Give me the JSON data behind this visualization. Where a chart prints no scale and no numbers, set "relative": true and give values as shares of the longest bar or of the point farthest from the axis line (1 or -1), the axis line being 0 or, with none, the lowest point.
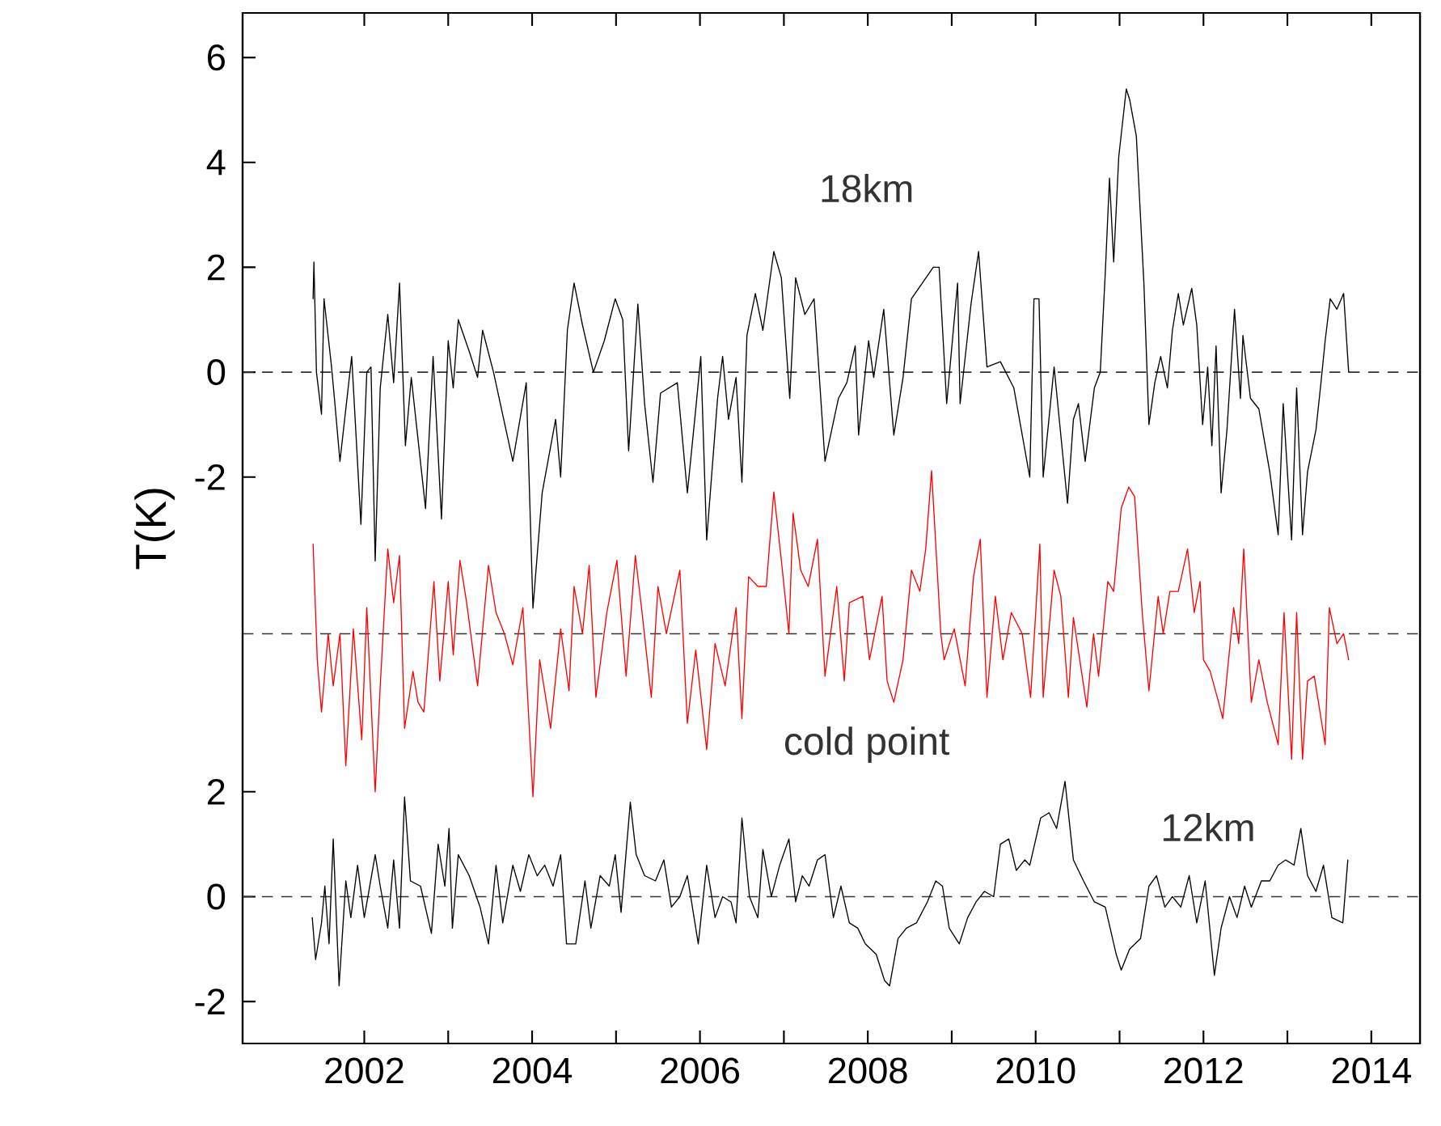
{
  "chart_data": [
    {
      "type": "line",
      "ylabel": "T(K)",
      "xlim": [
        2000.55,
        2014.58
      ],
      "ylim": [
        -12.8,
        6.85
      ],
      "yticks": [
        6,
        4,
        2,
        0,
        -2
      ],
      "tick_labels": "y",
      "ref_lines": [
        {
          "axis": "y",
          "value": 0,
          "line_style": "dashed"
        }
      ],
      "series": [
        {
          "name": "18km",
          "color": "#000000",
          "x": [
            2001.39,
            2001.4,
            2001.43,
            2001.49,
            2001.52,
            2001.61,
            2001.65,
            2001.71,
            2001.78,
            2001.85,
            2001.96,
            2002.03,
            2002.08,
            2002.13,
            2002.19,
            2002.28,
            2002.35,
            2002.42,
            2002.49,
            2002.56,
            2002.73,
            2002.82,
            2002.92,
            2003.0,
            2003.06,
            2003.12,
            2003.25,
            2003.35,
            2003.41,
            2003.54,
            2003.77,
            2003.93,
            2004.01,
            2004.12,
            2004.28,
            2004.34,
            2004.42,
            2004.5,
            2004.6,
            2004.73,
            2004.86,
            2004.99,
            2005.08,
            2005.15,
            2005.26,
            2005.34,
            2005.44,
            2005.53,
            2005.73,
            2005.85,
            2005.95,
            2006.01,
            2006.08,
            2006.21,
            2006.27,
            2006.34,
            2006.43,
            2006.5,
            2006.56,
            2006.66,
            2006.75,
            2006.88,
            2006.97,
            2007.07,
            2007.14,
            2007.25,
            2007.36,
            2007.49,
            2007.65,
            2007.75,
            2007.85,
            2007.89,
            2008.01,
            2008.07,
            2008.19,
            2008.31,
            2008.42,
            2008.52,
            2008.65,
            2008.78,
            2008.85,
            2008.94,
            2009.07,
            2009.1,
            2009.23,
            2009.32,
            2009.42,
            2009.58,
            2009.74,
            2009.93,
            2009.98,
            2010.04,
            2010.09,
            2010.22,
            2010.38,
            2010.45,
            2010.51,
            2010.59,
            2010.7,
            2010.77,
            2010.83,
            2010.88,
            2010.93,
            2010.99,
            2011.08,
            2011.12,
            2011.2,
            2011.29,
            2011.35,
            2011.42,
            2011.49,
            2011.57,
            2011.63,
            2011.7,
            2011.76,
            2011.86,
            2011.92,
            2011.99,
            2012.05,
            2012.1,
            2012.15,
            2012.21,
            2012.28,
            2012.37,
            2012.44,
            2012.47,
            2012.56,
            2012.66,
            2012.79,
            2012.89,
            2012.95,
            2013.05,
            2013.11,
            2013.18,
            2013.24,
            2013.34,
            2013.4,
            2013.45,
            2013.51,
            2013.59,
            2013.67,
            2013.73
          ],
          "values": [
            1.4,
            2.1,
            0.0,
            -0.8,
            1.4,
            0.1,
            -0.6,
            -1.7,
            -0.7,
            0.3,
            -2.9,
            0.0,
            0.1,
            -3.6,
            -0.3,
            1.1,
            -0.2,
            1.7,
            -1.4,
            -0.1,
            -2.6,
            0.3,
            -2.8,
            0.6,
            -0.3,
            1.0,
            0.4,
            -0.1,
            0.8,
            0.0,
            -1.7,
            -0.2,
            -4.5,
            -2.3,
            -0.9,
            -2.0,
            0.8,
            1.7,
            0.9,
            0.0,
            0.6,
            1.4,
            1.0,
            -1.5,
            1.3,
            -0.6,
            -2.1,
            -0.4,
            -0.2,
            -2.3,
            -0.7,
            0.3,
            -3.2,
            -0.5,
            0.3,
            -0.9,
            -0.1,
            -2.1,
            0.7,
            1.5,
            0.8,
            2.3,
            1.8,
            -0.5,
            1.8,
            1.1,
            1.4,
            -1.7,
            -0.5,
            -0.2,
            0.5,
            -1.2,
            0.6,
            -0.1,
            1.2,
            -1.2,
            -0.1,
            1.4,
            1.7,
            2.0,
            2.0,
            -0.6,
            1.7,
            -0.6,
            1.3,
            2.3,
            0.1,
            0.2,
            -0.3,
            -2.0,
            1.4,
            1.4,
            -2.0,
            0.1,
            -2.5,
            -0.9,
            -0.6,
            -1.7,
            -0.3,
            0.0,
            1.9,
            3.7,
            2.1,
            4.1,
            5.4,
            5.2,
            4.5,
            1.7,
            -1.0,
            -0.2,
            0.3,
            -0.3,
            0.8,
            1.5,
            0.9,
            1.6,
            0.9,
            -1.0,
            0.1,
            -1.4,
            0.5,
            -2.3,
            -1.1,
            1.2,
            -0.5,
            0.7,
            -0.5,
            -0.7,
            -1.9,
            -3.1,
            -0.6,
            -3.2,
            -0.3,
            -3.1,
            -1.9,
            -1.1,
            -0.2,
            0.6,
            1.4,
            1.2,
            1.5,
            0.0
          ]
        }
      ]
    },
    {
      "type": "line",
      "relative": true,
      "xlim": [
        2000.55,
        2014.58
      ],
      "tick_labels": false,
      "ref_lines": [
        {
          "axis": "y",
          "value": 0,
          "line_style": "dashed"
        }
      ],
      "series": [
        {
          "name": "cold point",
          "color": "#ff0000",
          "x": [
            2001.39,
            2001.44,
            2001.49,
            2001.57,
            2001.63,
            2001.71,
            2001.78,
            2001.87,
            2001.97,
            2002.03,
            2002.13,
            2002.19,
            2002.28,
            2002.35,
            2002.42,
            2002.48,
            2002.58,
            2002.64,
            2002.71,
            2002.83,
            2002.9,
            2003.0,
            2003.06,
            2003.14,
            2003.22,
            2003.35,
            2003.48,
            2003.57,
            2003.67,
            2003.77,
            2003.89,
            2004.01,
            2004.09,
            2004.22,
            2004.34,
            2004.44,
            2004.5,
            2004.6,
            2004.68,
            2004.76,
            2004.89,
            2005.01,
            2005.12,
            2005.23,
            2005.31,
            2005.42,
            2005.5,
            2005.6,
            2005.76,
            2005.85,
            2005.95,
            2006.08,
            2006.18,
            2006.3,
            2006.43,
            2006.5,
            2006.58,
            2006.69,
            2006.79,
            2006.88,
            2006.97,
            2007.06,
            2007.11,
            2007.2,
            2007.29,
            2007.4,
            2007.49,
            2007.63,
            2007.72,
            2007.78,
            2007.94,
            2008.02,
            2008.17,
            2008.23,
            2008.31,
            2008.42,
            2008.52,
            2008.62,
            2008.69,
            2008.76,
            2008.87,
            2008.91,
            2009.03,
            2009.16,
            2009.26,
            2009.34,
            2009.42,
            2009.52,
            2009.61,
            2009.71,
            2009.84,
            2009.94,
            2010.05,
            2010.09,
            2010.22,
            2010.3,
            2010.39,
            2010.45,
            2010.61,
            2010.69,
            2010.75,
            2010.86,
            2010.93,
            2011.02,
            2011.11,
            2011.18,
            2011.27,
            2011.35,
            2011.46,
            2011.52,
            2011.6,
            2011.7,
            2011.81,
            2011.89,
            2011.96,
            2012.0,
            2012.08,
            2012.18,
            2012.23,
            2012.36,
            2012.42,
            2012.48,
            2012.57,
            2012.66,
            2012.76,
            2012.89,
            2012.96,
            2013.05,
            2013.11,
            2013.18,
            2013.24,
            2013.32,
            2013.37,
            2013.45,
            2013.5,
            2013.59,
            2013.67,
            2013.73
          ],
          "values": [
            0.55,
            -0.16,
            -0.48,
            0,
            -0.32,
            0,
            -0.81,
            0.03,
            -0.65,
            0.16,
            -0.97,
            -0.32,
            0.52,
            0.19,
            0.48,
            -0.58,
            -0.23,
            -0.42,
            -0.48,
            0.32,
            -0.29,
            0.32,
            -0.13,
            0.45,
            0.19,
            -0.32,
            0.42,
            0.13,
            0,
            -0.19,
            0.16,
            -1,
            -0.16,
            -0.58,
            0.03,
            -0.35,
            0.29,
            0,
            0.42,
            -0.39,
            0.13,
            0.45,
            -0.26,
            0.48,
            0.13,
            -0.39,
            0.29,
            0,
            0.39,
            -0.55,
            -0.1,
            -0.71,
            -0.06,
            -0.32,
            0.16,
            -0.52,
            0.35,
            0.29,
            0.29,
            0.87,
            0.45,
            0,
            0.74,
            0.39,
            0.29,
            0.58,
            -0.26,
            0.29,
            -0.29,
            0.19,
            0.23,
            -0.16,
            0.23,
            -0.29,
            -0.42,
            -0.16,
            0.39,
            0.26,
            0.52,
            1,
            0,
            -0.16,
            0.03,
            -0.32,
            0.35,
            0.58,
            -0.39,
            0.23,
            -0.16,
            0.13,
            0,
            -0.39,
            0.55,
            -0.39,
            0.39,
            0.23,
            -0.39,
            0.1,
            -0.45,
            0,
            -0.26,
            0.32,
            0.26,
            0.77,
            0.9,
            0.84,
            0.13,
            -0.35,
            0.23,
            0,
            0.26,
            0.26,
            0.52,
            0.13,
            0.32,
            -0.16,
            -0.23,
            -0.42,
            -0.52,
            0.16,
            -0.06,
            0.52,
            -0.42,
            -0.16,
            -0.42,
            -0.68,
            0.13,
            -0.77,
            0.13,
            -0.77,
            -0.29,
            -0.26,
            -0.42,
            -0.68,
            0.16,
            -0.06,
            0,
            -0.16
          ]
        }
      ]
    },
    {
      "type": "line",
      "xlim": [
        2000.55,
        2014.58
      ],
      "ylim": [
        -2.8,
        16.85
      ],
      "xticks": [
        2002,
        {
          "value": 2003,
          "label": null
        },
        2004,
        {
          "value": 2005,
          "label": null
        },
        2006,
        {
          "value": 2007,
          "label": null
        },
        2008,
        {
          "value": 2009,
          "label": null
        },
        2010,
        {
          "value": 2011,
          "label": null
        },
        2012,
        {
          "value": 2013,
          "label": null
        },
        2014
      ],
      "yticks": [
        2,
        0,
        -2
      ],
      "ref_lines": [
        {
          "axis": "y",
          "value": 0,
          "line_style": "dashed"
        }
      ],
      "series": [
        {
          "name": "12km",
          "color": "#000000",
          "x": [
            2001.38,
            2001.42,
            2001.49,
            2001.53,
            2001.58,
            2001.63,
            2001.7,
            2001.78,
            2001.84,
            2001.92,
            2002.0,
            2002.13,
            2002.19,
            2002.28,
            2002.35,
            2002.42,
            2002.48,
            2002.55,
            2002.67,
            2002.8,
            2002.88,
            2002.96,
            2003.01,
            2003.05,
            2003.12,
            2003.25,
            2003.38,
            2003.48,
            2003.57,
            2003.65,
            2003.77,
            2003.86,
            2003.96,
            2004.06,
            2004.15,
            2004.25,
            2004.34,
            2004.41,
            2004.52,
            2004.63,
            2004.7,
            2004.81,
            2004.92,
            2004.99,
            2005.06,
            2005.17,
            2005.24,
            2005.34,
            2005.47,
            2005.57,
            2005.66,
            2005.76,
            2005.85,
            2005.98,
            2006.08,
            2006.18,
            2006.27,
            2006.37,
            2006.43,
            2006.5,
            2006.59,
            2006.69,
            2006.75,
            2006.85,
            2006.95,
            2007.06,
            2007.14,
            2007.22,
            2007.3,
            2007.4,
            2007.49,
            2007.59,
            2007.68,
            2007.78,
            2007.88,
            2007.97,
            2008.1,
            2008.2,
            2008.26,
            2008.36,
            2008.46,
            2008.58,
            2008.71,
            2008.81,
            2008.89,
            2008.97,
            2009.09,
            2009.19,
            2009.29,
            2009.39,
            2009.5,
            2009.58,
            2009.68,
            2009.77,
            2009.87,
            2009.93,
            2010.06,
            2010.16,
            2010.25,
            2010.35,
            2010.45,
            2010.57,
            2010.7,
            2010.83,
            2010.96,
            2011.02,
            2011.12,
            2011.25,
            2011.35,
            2011.44,
            2011.54,
            2011.63,
            2011.73,
            2011.83,
            2011.92,
            2012.02,
            2012.13,
            2012.21,
            2012.31,
            2012.4,
            2012.49,
            2012.57,
            2012.69,
            2012.79,
            2012.89,
            2012.98,
            2013.08,
            2013.16,
            2013.24,
            2013.34,
            2013.43,
            2013.53,
            2013.66,
            2013.72
          ],
          "values": [
            -0.4,
            -1.2,
            -0.5,
            0.2,
            -0.9,
            1.1,
            -1.7,
            0.3,
            -0.4,
            0.6,
            -0.4,
            0.8,
            0.2,
            -0.6,
            0.7,
            -0.6,
            1.9,
            0.3,
            0.2,
            -0.7,
            1.0,
            0.2,
            1.3,
            -0.6,
            0.8,
            0.4,
            -0.2,
            -0.9,
            0.6,
            -0.5,
            0.6,
            0.1,
            0.8,
            0.4,
            0.6,
            0.2,
            0.8,
            -0.9,
            -0.9,
            0.3,
            -0.6,
            0.4,
            0.2,
            0.8,
            -0.3,
            1.8,
            0.8,
            0.4,
            0.3,
            0.7,
            -0.2,
            0.0,
            0.4,
            -0.9,
            0.6,
            -0.4,
            0.0,
            -0.1,
            -0.5,
            1.5,
            0.0,
            -0.4,
            0.9,
            0.0,
            0.6,
            1.1,
            -0.1,
            0.4,
            0.2,
            0.7,
            0.8,
            -0.4,
            0.2,
            -0.5,
            -0.6,
            -0.9,
            -1.1,
            -1.6,
            -1.7,
            -0.8,
            -0.6,
            -0.5,
            -0.1,
            0.3,
            0.2,
            -0.6,
            -0.9,
            -0.4,
            -0.1,
            0.1,
            0.0,
            1.0,
            1.1,
            0.5,
            0.7,
            0.6,
            1.5,
            1.6,
            1.3,
            2.2,
            0.7,
            0.3,
            -0.1,
            -0.2,
            -1.1,
            -1.4,
            -1.0,
            -0.8,
            0.2,
            0.4,
            -0.2,
            0.0,
            -0.2,
            0.4,
            -0.5,
            0.3,
            -1.5,
            -0.6,
            0.0,
            -0.4,
            0.2,
            -0.2,
            0.3,
            0.3,
            0.6,
            0.7,
            0.6,
            1.3,
            0.4,
            0.1,
            0.6,
            -0.4,
            -0.5,
            0.7
          ]
        }
      ]
    }
  ]
}
